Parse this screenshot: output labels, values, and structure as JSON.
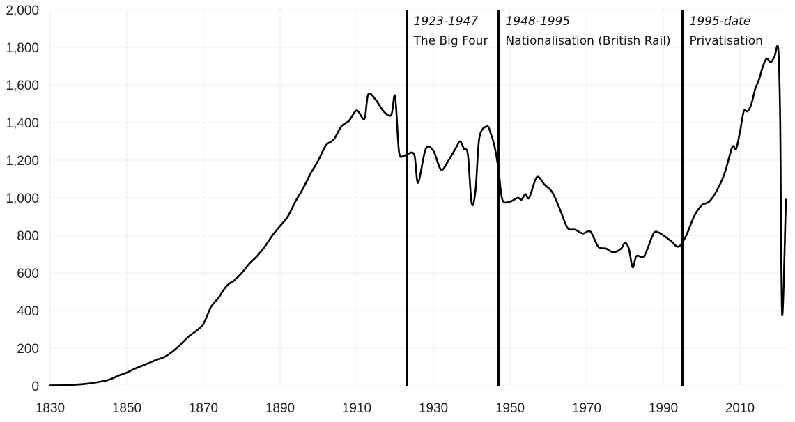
{
  "chart_data": {
    "type": "line",
    "title": "",
    "xlabel": "",
    "ylabel": "",
    "xlim": [
      1830,
      2022
    ],
    "ylim": [
      0,
      2000
    ],
    "grid": true,
    "legend": "none",
    "x_ticks": [
      "1830",
      "1850",
      "1870",
      "1890",
      "1910",
      "1930",
      "1950",
      "1970",
      "1990",
      "2010"
    ],
    "y_ticks": [
      "0",
      "200",
      "400",
      "600",
      "800",
      "1,000",
      "1,200",
      "1,400",
      "1,600",
      "1,800",
      "2,000"
    ],
    "eras": [
      {
        "year": 1923,
        "period": "1923-1947",
        "name": "The Big Four"
      },
      {
        "year": 1947,
        "period": "1948-1995",
        "name": "Nationalisation (British Rail)"
      },
      {
        "year": 1995,
        "period": "1995-date",
        "name": "Privatisation"
      }
    ],
    "series": [
      {
        "color": "#000000",
        "points": [
          [
            1830,
            2
          ],
          [
            1835,
            4
          ],
          [
            1840,
            12
          ],
          [
            1845,
            30
          ],
          [
            1848,
            55
          ],
          [
            1850,
            70
          ],
          [
            1852,
            90
          ],
          [
            1855,
            115
          ],
          [
            1858,
            140
          ],
          [
            1860,
            155
          ],
          [
            1863,
            200
          ],
          [
            1866,
            260
          ],
          [
            1868,
            290
          ],
          [
            1870,
            330
          ],
          [
            1872,
            420
          ],
          [
            1874,
            470
          ],
          [
            1876,
            530
          ],
          [
            1878,
            560
          ],
          [
            1880,
            600
          ],
          [
            1882,
            650
          ],
          [
            1884,
            690
          ],
          [
            1886,
            740
          ],
          [
            1888,
            800
          ],
          [
            1890,
            850
          ],
          [
            1892,
            900
          ],
          [
            1894,
            980
          ],
          [
            1896,
            1050
          ],
          [
            1898,
            1130
          ],
          [
            1900,
            1200
          ],
          [
            1902,
            1280
          ],
          [
            1904,
            1310
          ],
          [
            1906,
            1380
          ],
          [
            1908,
            1410
          ],
          [
            1910,
            1465
          ],
          [
            1912,
            1420
          ],
          [
            1913,
            1550
          ],
          [
            1915,
            1520
          ],
          [
            1917,
            1460
          ],
          [
            1919,
            1440
          ],
          [
            1920,
            1540
          ],
          [
            1921,
            1250
          ],
          [
            1922,
            1220
          ],
          [
            1923,
            1230
          ],
          [
            1925,
            1230
          ],
          [
            1926,
            1080
          ],
          [
            1928,
            1260
          ],
          [
            1930,
            1250
          ],
          [
            1932,
            1150
          ],
          [
            1934,
            1200
          ],
          [
            1936,
            1270
          ],
          [
            1937,
            1300
          ],
          [
            1938,
            1260
          ],
          [
            1939,
            1230
          ],
          [
            1940,
            970
          ],
          [
            1941,
            1040
          ],
          [
            1942,
            1320
          ],
          [
            1944,
            1380
          ],
          [
            1945,
            1340
          ],
          [
            1946,
            1270
          ],
          [
            1947,
            1150
          ],
          [
            1948,
            990
          ],
          [
            1950,
            980
          ],
          [
            1952,
            1000
          ],
          [
            1953,
            990
          ],
          [
            1954,
            1020
          ],
          [
            1955,
            1000
          ],
          [
            1957,
            1110
          ],
          [
            1959,
            1070
          ],
          [
            1961,
            1030
          ],
          [
            1963,
            940
          ],
          [
            1965,
            840
          ],
          [
            1967,
            830
          ],
          [
            1969,
            810
          ],
          [
            1971,
            820
          ],
          [
            1973,
            740
          ],
          [
            1975,
            730
          ],
          [
            1977,
            710
          ],
          [
            1979,
            730
          ],
          [
            1980,
            760
          ],
          [
            1981,
            730
          ],
          [
            1982,
            630
          ],
          [
            1983,
            690
          ],
          [
            1985,
            690
          ],
          [
            1987,
            790
          ],
          [
            1988,
            820
          ],
          [
            1990,
            800
          ],
          [
            1992,
            770
          ],
          [
            1994,
            740
          ],
          [
            1996,
            800
          ],
          [
            1998,
            900
          ],
          [
            2000,
            960
          ],
          [
            2002,
            980
          ],
          [
            2004,
            1040
          ],
          [
            2006,
            1130
          ],
          [
            2008,
            1270
          ],
          [
            2009,
            1260
          ],
          [
            2010,
            1350
          ],
          [
            2011,
            1460
          ],
          [
            2012,
            1460
          ],
          [
            2013,
            1500
          ],
          [
            2014,
            1580
          ],
          [
            2015,
            1630
          ],
          [
            2016,
            1700
          ],
          [
            2017,
            1740
          ],
          [
            2018,
            1720
          ],
          [
            2019,
            1750
          ],
          [
            2020,
            1790
          ],
          [
            2020.5,
            1400
          ],
          [
            2021,
            380
          ],
          [
            2022,
            990
          ]
        ]
      }
    ]
  }
}
